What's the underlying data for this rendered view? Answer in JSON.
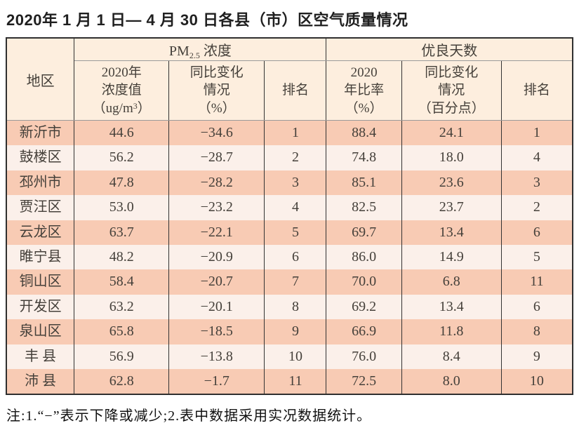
{
  "title": "2020年 1 月 1 日— 4 月 30 日各县（市）区空气质量情况",
  "colors": {
    "row_dark": "#f8cbb4",
    "row_light": "#fbf0ea",
    "header_bg": "#fdeede",
    "border": "#2f2f2f",
    "header_rule": "#9a9a9a",
    "cell_text": "#45403a"
  },
  "table": {
    "headers": {
      "region": "地区",
      "pm25_group": {
        "pre": "PM",
        "sub": "2.5",
        "post": " 浓度"
      },
      "days_group": "优良天数",
      "pm_value": {
        "line1": "2020年",
        "line2": "浓度值",
        "line3_pre": "（ug/m",
        "line3_sup": "3",
        "line3_post": "）"
      },
      "pm_change": {
        "line1": "同比变化",
        "line2": "情况",
        "line3": "（%）"
      },
      "pm_rank": "排名",
      "days_ratio": {
        "line1": "2020",
        "line2": "年比率",
        "line3": "（%）"
      },
      "days_change": {
        "line1": "同比变化",
        "line2": "情况",
        "line3": "（百分点）"
      },
      "days_rank": "排名"
    },
    "column_keys": [
      "region",
      "pm_value",
      "pm_change",
      "pm_rank",
      "days_ratio",
      "days_change",
      "days_rank"
    ],
    "rows": [
      {
        "region": "新沂市",
        "pm_value": "44.6",
        "pm_change": "−34.6",
        "pm_rank": "1",
        "days_ratio": "88.4",
        "days_change": "24.1",
        "days_rank": "1"
      },
      {
        "region": "鼓楼区",
        "pm_value": "56.2",
        "pm_change": "−28.7",
        "pm_rank": "2",
        "days_ratio": "74.8",
        "days_change": "18.0",
        "days_rank": "4"
      },
      {
        "region": "邳州市",
        "pm_value": "47.8",
        "pm_change": "−28.2",
        "pm_rank": "3",
        "days_ratio": "85.1",
        "days_change": "23.6",
        "days_rank": "3"
      },
      {
        "region": "贾汪区",
        "pm_value": "53.0",
        "pm_change": "−23.2",
        "pm_rank": "4",
        "days_ratio": "82.5",
        "days_change": "23.7",
        "days_rank": "2"
      },
      {
        "region": "云龙区",
        "pm_value": "63.7",
        "pm_change": "−22.1",
        "pm_rank": "5",
        "days_ratio": "69.7",
        "days_change": "13.4",
        "days_rank": "6"
      },
      {
        "region": "睢宁县",
        "pm_value": "48.2",
        "pm_change": "−20.9",
        "pm_rank": "6",
        "days_ratio": "86.0",
        "days_change": "14.9",
        "days_rank": "5"
      },
      {
        "region": "铜山区",
        "pm_value": "58.4",
        "pm_change": "−20.7",
        "pm_rank": "7",
        "days_ratio": "70.0",
        "days_change": "6.8",
        "days_rank": "11"
      },
      {
        "region": "开发区",
        "pm_value": "63.2",
        "pm_change": "−20.1",
        "pm_rank": "8",
        "days_ratio": "69.2",
        "days_change": "13.4",
        "days_rank": "6"
      },
      {
        "region": "泉山区",
        "pm_value": "65.8",
        "pm_change": "−18.5",
        "pm_rank": "9",
        "days_ratio": "66.9",
        "days_change": "11.8",
        "days_rank": "8"
      },
      {
        "region": "丰 县",
        "pm_value": "56.9",
        "pm_change": "−13.8",
        "pm_rank": "10",
        "days_ratio": "76.0",
        "days_change": "8.4",
        "days_rank": "9"
      },
      {
        "region": "沛 县",
        "pm_value": "62.8",
        "pm_change": "−1.7",
        "pm_rank": "11",
        "days_ratio": "72.5",
        "days_change": "8.0",
        "days_rank": "10"
      }
    ]
  },
  "footnote": "注:1.“−”表示下降或减少;2.表中数据采用实况数据统计。"
}
